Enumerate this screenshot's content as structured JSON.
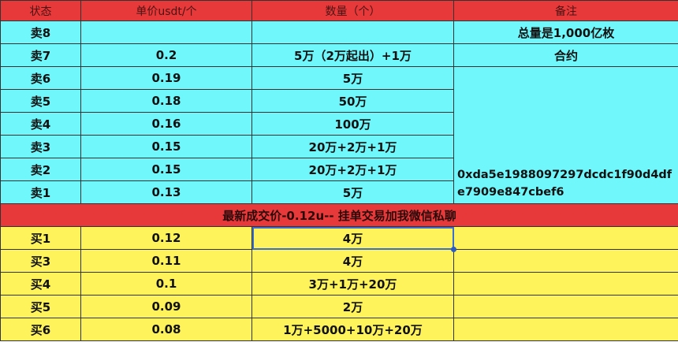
{
  "header": [
    "状态",
    "单价usdt/个",
    "数量（个）",
    "备注"
  ],
  "sell_rows": [
    {
      "status": "卖8",
      "price": "",
      "qty": ""
    },
    {
      "status": "卖7",
      "price": "0.2",
      "qty": "5万（2万起出）+1万"
    },
    {
      "status": "卖6",
      "price": "0.19",
      "qty": "5万"
    },
    {
      "status": "卖5",
      "price": "0.18",
      "qty": "50万"
    },
    {
      "status": "卖4",
      "price": "0.16",
      "qty": "100万"
    },
    {
      "status": "卖3",
      "price": "0.15",
      "qty": "20万+2万+1万"
    },
    {
      "status": "卖2",
      "price": "0.15",
      "qty": "20万+2万+1万"
    },
    {
      "status": "卖1",
      "price": "0.13",
      "qty": "5万"
    }
  ],
  "notes": {
    "total": "总量是1,000亿枚",
    "contract_label": "合约",
    "contract_address": "0xda5e1988097297dcdc1f90d4dfe7909e847cbef6"
  },
  "banner": "最新成交价-0.12u-- 挂单交易加我微信私聊",
  "buy_rows": [
    {
      "status": "买1",
      "price": "0.12",
      "qty": "4万"
    },
    {
      "status": "买3",
      "price": "0.11",
      "qty": "4万"
    },
    {
      "status": "买4",
      "price": "0.1",
      "qty": "3万+1万+20万"
    },
    {
      "status": "买5",
      "price": "0.09",
      "qty": "2万"
    },
    {
      "status": "买6",
      "price": "0.08",
      "qty": "1万+5000+10万+20万"
    }
  ],
  "colors": {
    "header": "#e8393a",
    "sell": "#6ff7fb",
    "buy": "#fef35a",
    "selection": "#2a5cc8"
  }
}
